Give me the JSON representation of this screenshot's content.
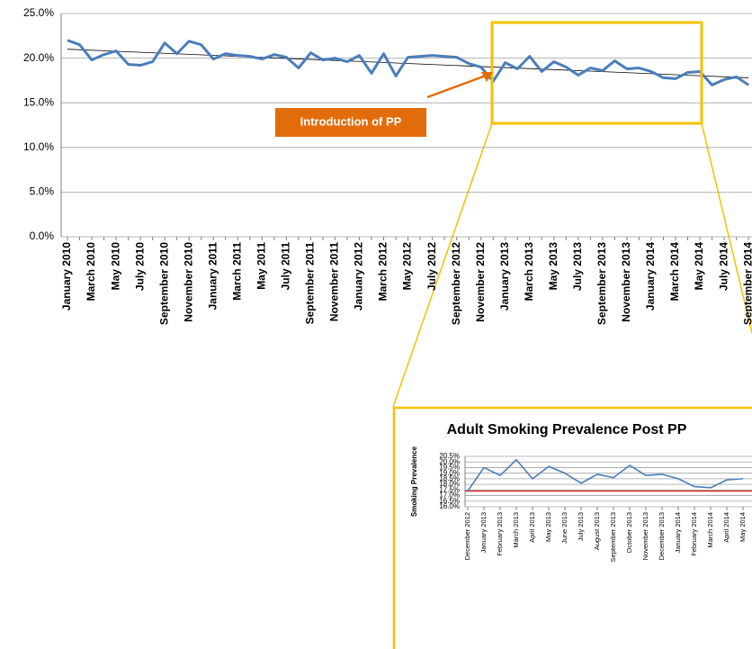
{
  "chart_data": [
    {
      "type": "line",
      "categories": [
        "January 2010",
        null,
        "March 2010",
        null,
        "May 2010",
        null,
        "July 2010",
        null,
        "September 2010",
        null,
        "November 2010",
        null,
        "January 2011",
        null,
        "March 2011",
        null,
        "May 2011",
        null,
        "July 2011",
        null,
        "September 2011",
        null,
        "November 2011",
        null,
        "January 2012",
        null,
        "March 2012",
        null,
        "May 2012",
        null,
        "July 2012",
        null,
        "September 2012",
        null,
        "November 2012",
        null,
        "January 2013",
        null,
        "March 2013",
        null,
        "May 2013",
        null,
        "July 2013",
        null,
        "September 2013",
        null,
        "November 2013",
        null,
        "January 2014",
        null,
        "March 2014",
        null,
        "May 2014",
        null,
        "July 2014",
        null,
        "September 2014"
      ],
      "values": [
        22.0,
        21.5,
        19.8,
        20.4,
        20.8,
        19.3,
        19.2,
        19.6,
        21.7,
        20.5,
        21.9,
        21.5,
        19.9,
        20.5,
        20.3,
        20.2,
        19.9,
        20.4,
        20.1,
        18.9,
        20.6,
        19.8,
        20.0,
        19.6,
        20.3,
        18.3,
        20.5,
        18.0,
        20.1,
        20.2,
        20.3,
        20.2,
        20.1,
        19.4,
        19.0,
        17.4,
        19.5,
        18.8,
        20.2,
        18.5,
        19.6,
        19.0,
        18.1,
        18.9,
        18.6,
        19.7,
        18.8,
        18.9,
        18.5,
        17.8,
        17.7,
        18.4,
        18.5,
        17.0,
        17.6,
        17.9,
        17.0
      ],
      "color": "#4a7ebb",
      "trendline": {
        "values": [
          21.0,
          17.8
        ],
        "color": "#000000"
      },
      "annotation": "Introduction of PP",
      "ylim": [
        0,
        25
      ],
      "yticks": [
        {
          "value": 0,
          "label": "0.0%"
        },
        {
          "value": 5,
          "label": "5.0%"
        },
        {
          "value": 10,
          "label": "10.0%"
        },
        {
          "value": 15,
          "label": "15.0%"
        },
        {
          "value": 20,
          "label": "20.0%"
        },
        {
          "value": 25,
          "label": "25.0%"
        }
      ],
      "grid": true
    },
    {
      "type": "line",
      "title": "Adult Smoking Prevalence Post PP",
      "y_label": "Smoking Prevalence",
      "categories": [
        "December 2012",
        "January 2013",
        "February 2013",
        "March 2013",
        "April 2013",
        "May 2013",
        "June 2013",
        "July 2013",
        "August 2013",
        "September 2013",
        "October 2013",
        "November 2013",
        "December 2013",
        "January 2014",
        "February 2014",
        "March 2014",
        "April 2014",
        "May 2014"
      ],
      "values": [
        17.4,
        19.5,
        18.8,
        20.2,
        18.5,
        19.6,
        19.0,
        18.1,
        18.9,
        18.6,
        19.7,
        18.8,
        18.9,
        18.5,
        17.8,
        17.7,
        18.4,
        18.5
      ],
      "color": "#4a7ebb",
      "reference_line": {
        "value": 17.4,
        "color": "#e02020"
      },
      "ylim": [
        16.0,
        20.5
      ],
      "yticks": [
        {
          "value": 16.0,
          "label": "16.0%"
        },
        {
          "value": 16.5,
          "label": "16.5%"
        },
        {
          "value": 17.0,
          "label": "17.0%"
        },
        {
          "value": 17.5,
          "label": "17.5%"
        },
        {
          "value": 18.0,
          "label": "18.0%"
        },
        {
          "value": 18.5,
          "label": "18.5%"
        },
        {
          "value": 19.0,
          "label": "19.0%"
        },
        {
          "value": 19.5,
          "label": "19.5%"
        },
        {
          "value": 20.0,
          "label": "20.0%"
        },
        {
          "value": 20.5,
          "label": "20.5%"
        }
      ],
      "grid": true
    }
  ]
}
